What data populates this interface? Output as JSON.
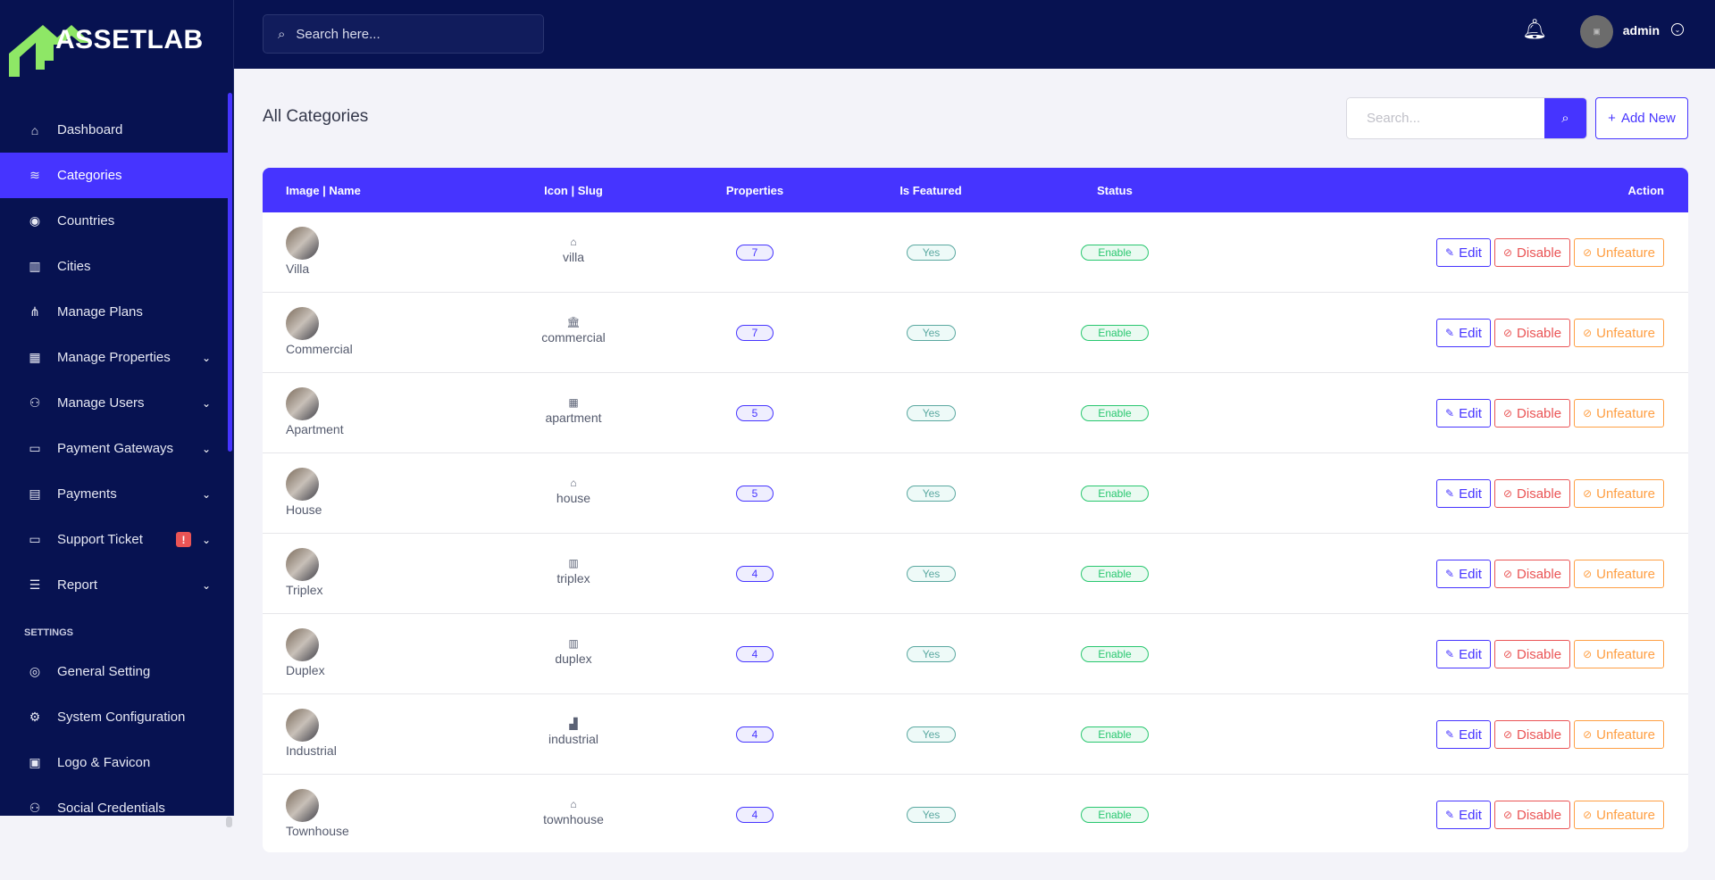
{
  "brand": {
    "name": "ASSETLAB",
    "logo_color": "#8ee766"
  },
  "topbar": {
    "search_placeholder": "Search here...",
    "user": "admin"
  },
  "sidebar": {
    "items": [
      {
        "label": "Dashboard",
        "icon": "home-icon"
      },
      {
        "label": "Categories",
        "icon": "layers-icon",
        "active": true
      },
      {
        "label": "Countries",
        "icon": "globe-icon"
      },
      {
        "label": "Cities",
        "icon": "building-icon"
      },
      {
        "label": "Manage Plans",
        "icon": "sitemap-icon"
      },
      {
        "label": "Manage Properties",
        "icon": "city-icon",
        "dropdown": true
      },
      {
        "label": "Manage Users",
        "icon": "users-icon",
        "dropdown": true
      },
      {
        "label": "Payment Gateways",
        "icon": "credit-card-icon",
        "dropdown": true
      },
      {
        "label": "Payments",
        "icon": "invoice-icon",
        "dropdown": true
      },
      {
        "label": "Support Ticket",
        "icon": "ticket-icon",
        "dropdown": true,
        "alert": "!"
      },
      {
        "label": "Report",
        "icon": "list-icon",
        "dropdown": true
      }
    ],
    "settings_label": "SETTINGS",
    "settings_items": [
      {
        "label": "General Setting",
        "icon": "lifering-icon"
      },
      {
        "label": "System Configuration",
        "icon": "gear-icon"
      },
      {
        "label": "Logo & Favicon",
        "icon": "images-icon"
      },
      {
        "label": "Social Credentials",
        "icon": "users-cog-icon"
      }
    ]
  },
  "main": {
    "title": "All Categories",
    "search_placeholder": "Search...",
    "add_new": "Add New",
    "columns": [
      "Image | Name",
      "Icon | Slug",
      "Properties",
      "Is Featured",
      "Status",
      "Action"
    ],
    "rows": [
      {
        "name": "Villa",
        "slug": "villa",
        "icon": "⌂",
        "properties": "7",
        "featured": "Yes",
        "status": "Enable"
      },
      {
        "name": "Commercial",
        "slug": "commercial",
        "icon": "🏛",
        "properties": "7",
        "featured": "Yes",
        "status": "Enable"
      },
      {
        "name": "Apartment",
        "slug": "apartment",
        "icon": "▦",
        "properties": "5",
        "featured": "Yes",
        "status": "Enable"
      },
      {
        "name": "House",
        "slug": "house",
        "icon": "⌂",
        "properties": "5",
        "featured": "Yes",
        "status": "Enable"
      },
      {
        "name": "Triplex",
        "slug": "triplex",
        "icon": "▥",
        "properties": "4",
        "featured": "Yes",
        "status": "Enable"
      },
      {
        "name": "Duplex",
        "slug": "duplex",
        "icon": "▥",
        "properties": "4",
        "featured": "Yes",
        "status": "Enable"
      },
      {
        "name": "Industrial",
        "slug": "industrial",
        "icon": "▟",
        "properties": "4",
        "featured": "Yes",
        "status": "Enable"
      },
      {
        "name": "Townhouse",
        "slug": "townhouse",
        "icon": "⌂",
        "properties": "4",
        "featured": "Yes",
        "status": "Enable"
      }
    ],
    "actions": {
      "edit": "Edit",
      "disable": "Disable",
      "unfeature": "Unfeature"
    }
  }
}
